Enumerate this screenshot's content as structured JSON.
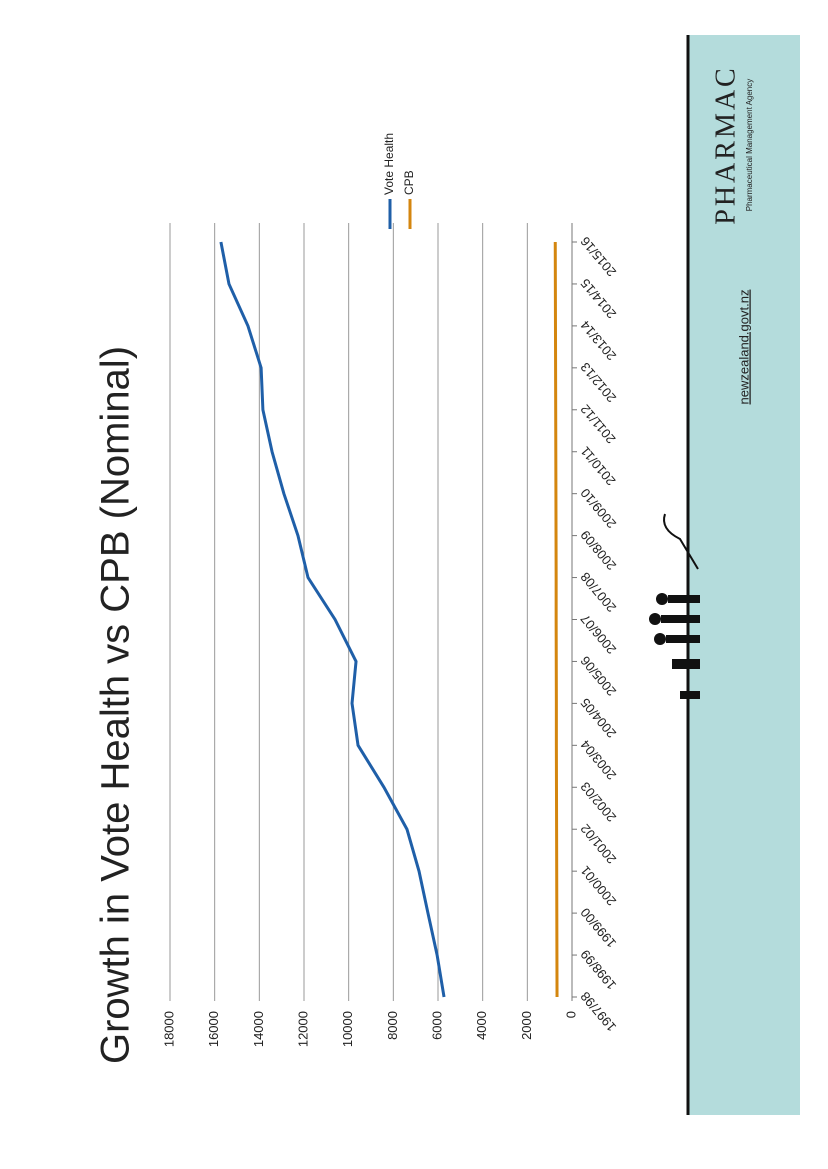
{
  "chart_data": {
    "type": "line",
    "title": "Growth in Vote Health vs CPB (Nominal)",
    "categories": [
      "1997/98",
      "1998/99",
      "1999/00",
      "2000/01",
      "2001/02",
      "2002/03",
      "2003/04",
      "2004/05",
      "2005/06",
      "2006/07",
      "2007/08",
      "2008/09",
      "2009/10",
      "2010/11",
      "2011/12",
      "2012/13",
      "2013/14",
      "2014/15",
      "2015/16"
    ],
    "series": [
      {
        "name": "Vote Health",
        "color": "#1f5fa8",
        "values": [
          5730,
          6040,
          6450,
          6850,
          7390,
          8420,
          9580,
          9850,
          9670,
          10610,
          11820,
          12270,
          12900,
          13430,
          13840,
          13920,
          14510,
          15360,
          15720
        ]
      },
      {
        "name": "CPB",
        "color": "#d4860f",
        "values": [
          670,
          675,
          680,
          685,
          690,
          695,
          700,
          700,
          705,
          710,
          710,
          715,
          720,
          725,
          730,
          735,
          740,
          745,
          750
        ]
      }
    ],
    "ylim": [
      0,
      18000
    ],
    "yticks": [
      0,
      2000,
      4000,
      6000,
      8000,
      10000,
      12000,
      14000,
      16000,
      18000
    ],
    "grid": true,
    "legend": "right"
  },
  "branding": {
    "logo": "PHARMAC",
    "tagline": "Pharmaceutical Management Agency",
    "website": "newzealand.govt.nz"
  }
}
